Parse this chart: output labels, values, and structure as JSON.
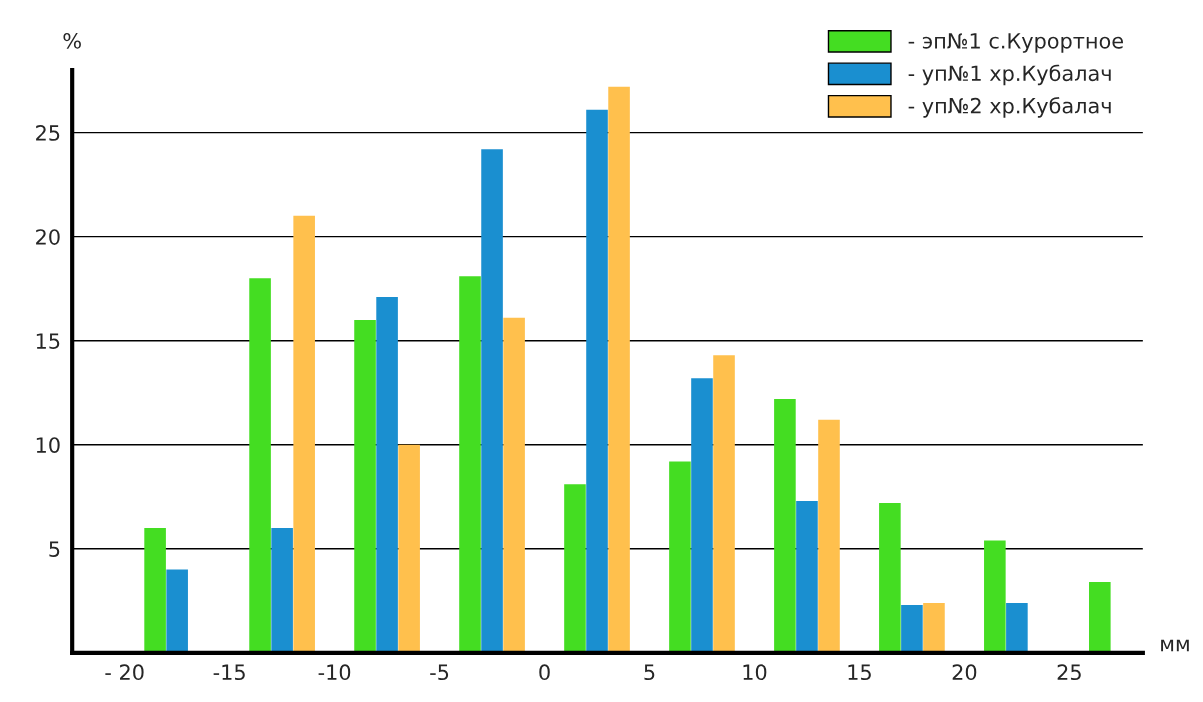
{
  "chart_data": {
    "type": "bar",
    "xlabel": "мм",
    "ylabel": "%",
    "x": [
      -17.5,
      -12.5,
      -7.5,
      -2.5,
      2.5,
      7.5,
      12.5,
      17.5,
      22.5,
      27.5
    ],
    "series": [
      {
        "name": "- эп№1 с.Курортное",
        "color": "#44dd22",
        "values": [
          6,
          18,
          16,
          18.1,
          8.1,
          9.2,
          12.2,
          7.2,
          5.4,
          3.4
        ]
      },
      {
        "name": "- уп№1 хр.Кубалач",
        "color": "#1a8fd0",
        "values": [
          4,
          6,
          17.1,
          24.2,
          26.1,
          13.2,
          7.3,
          2.3,
          2.4,
          null
        ]
      },
      {
        "name": "- уп№2 хр.Кубалач",
        "color": "#ffc04d",
        "values": [
          null,
          21,
          10,
          16.1,
          27.2,
          14.3,
          11.2,
          2.4,
          null,
          null
        ]
      }
    ],
    "xlim": [
      -22.5,
      28.5
    ],
    "ylim": [
      0,
      28
    ],
    "xticks": [
      {
        "value": -20,
        "label": "- 20"
      },
      -15,
      -10,
      -5,
      0,
      5,
      10,
      15,
      20,
      25
    ],
    "yticks": [
      5,
      10,
      15,
      20,
      25
    ],
    "grid": "y",
    "legend": "top right"
  }
}
